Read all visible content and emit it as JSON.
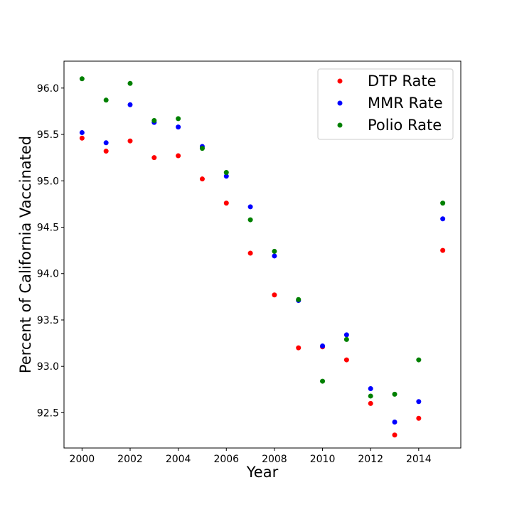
{
  "chart_data": {
    "type": "scatter",
    "title": "",
    "xlabel": "Year",
    "ylabel": "Percent of California Vaccinated",
    "xlim": [
      1999.25,
      2015.75
    ],
    "ylim": [
      92.12,
      96.29
    ],
    "xticks": [
      2000,
      2002,
      2004,
      2006,
      2008,
      2010,
      2012,
      2014
    ],
    "yticks": [
      92.5,
      93.0,
      93.5,
      94.0,
      94.5,
      95.0,
      95.5,
      96.0
    ],
    "ytick_labels": [
      "92.5",
      "93.0",
      "93.5",
      "94.0",
      "94.5",
      "95.0",
      "95.5",
      "96.0"
    ],
    "grid": false,
    "legend_position": "top-right",
    "x": [
      2000,
      2001,
      2002,
      2003,
      2004,
      2005,
      2006,
      2007,
      2008,
      2009,
      2010,
      2011,
      2012,
      2013,
      2014,
      2015
    ],
    "series": [
      {
        "name": "DTP Rate",
        "color": "#ff0000",
        "values": [
          95.46,
          95.32,
          95.43,
          95.25,
          95.27,
          95.02,
          94.76,
          94.22,
          93.77,
          93.2,
          93.21,
          93.07,
          92.6,
          92.26,
          92.44,
          94.25
        ]
      },
      {
        "name": "MMR Rate",
        "color": "#0000ff",
        "values": [
          95.52,
          95.41,
          95.82,
          95.63,
          95.58,
          95.37,
          95.05,
          94.72,
          94.19,
          93.71,
          93.22,
          93.34,
          92.76,
          92.4,
          92.62,
          94.59
        ]
      },
      {
        "name": "Polio Rate",
        "color": "#008000",
        "values": [
          96.1,
          95.87,
          96.05,
          95.65,
          95.67,
          95.35,
          95.09,
          94.58,
          94.24,
          93.72,
          92.84,
          93.29,
          92.68,
          92.7,
          93.07,
          94.76
        ]
      }
    ]
  }
}
